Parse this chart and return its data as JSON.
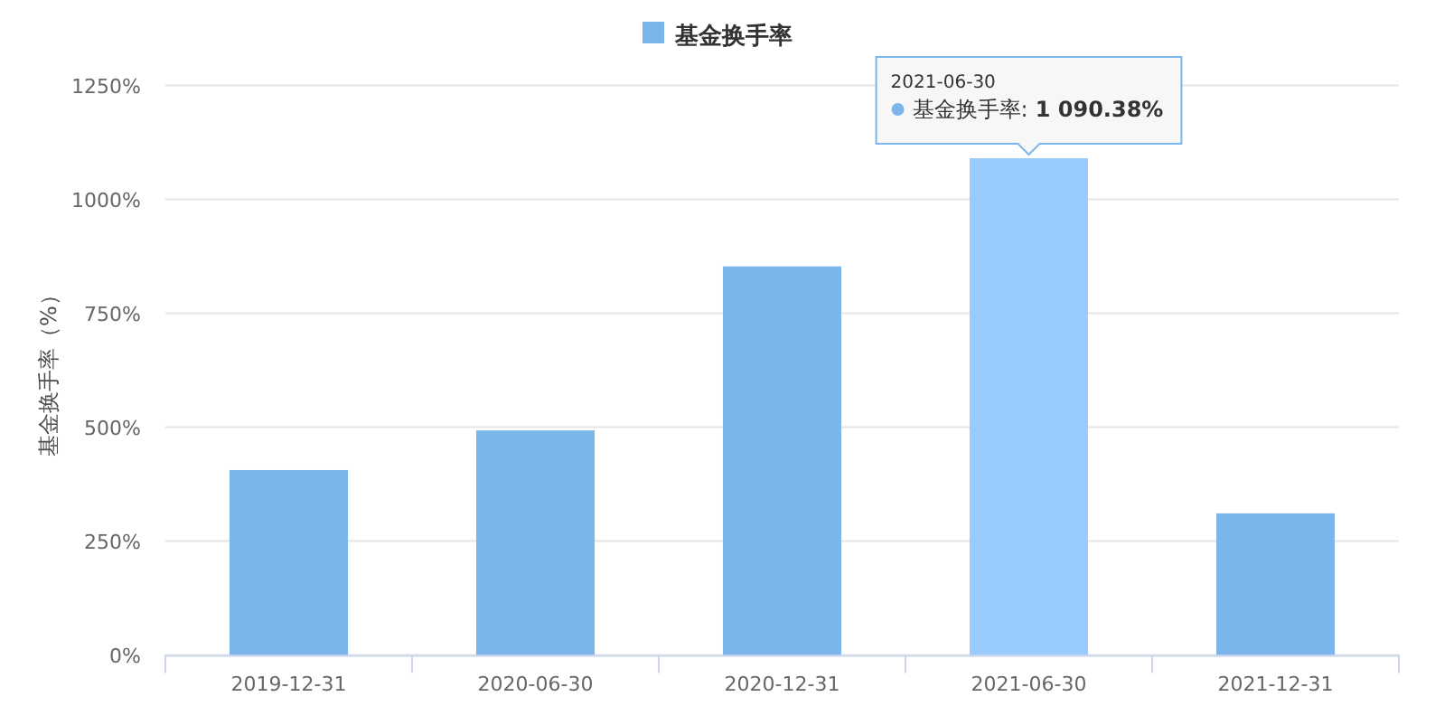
{
  "chart_data": {
    "type": "bar",
    "categories": [
      "2019-12-31",
      "2020-06-30",
      "2020-12-31",
      "2021-06-30",
      "2021-12-31"
    ],
    "series": [
      {
        "name": "基金换手率",
        "color": "#7cb5ec",
        "colors": [
          "#7cb5ec",
          "#7cb5ec",
          "#7cb5ec",
          "#99ccfc",
          "#7cb5ec"
        ],
        "values": [
          406,
          493,
          853,
          1090.38,
          311
        ],
        "value_labels": [
          null,
          null,
          null,
          "1 090.38%",
          null
        ]
      }
    ],
    "ylabel": "基金换手率（%）",
    "ylim": [
      0,
      1250
    ],
    "yticks": [
      {
        "value": 0,
        "label": "0%"
      },
      {
        "value": 250,
        "label": "250%"
      },
      {
        "value": 500,
        "label": "500%"
      },
      {
        "value": 750,
        "label": "750%"
      },
      {
        "value": 1000,
        "label": "1000%"
      },
      {
        "value": 1250,
        "label": "1250%"
      }
    ],
    "grid": "y",
    "legend": "top",
    "annotations": [
      "2021-06-30",
      "基金换手率:"
    ]
  }
}
